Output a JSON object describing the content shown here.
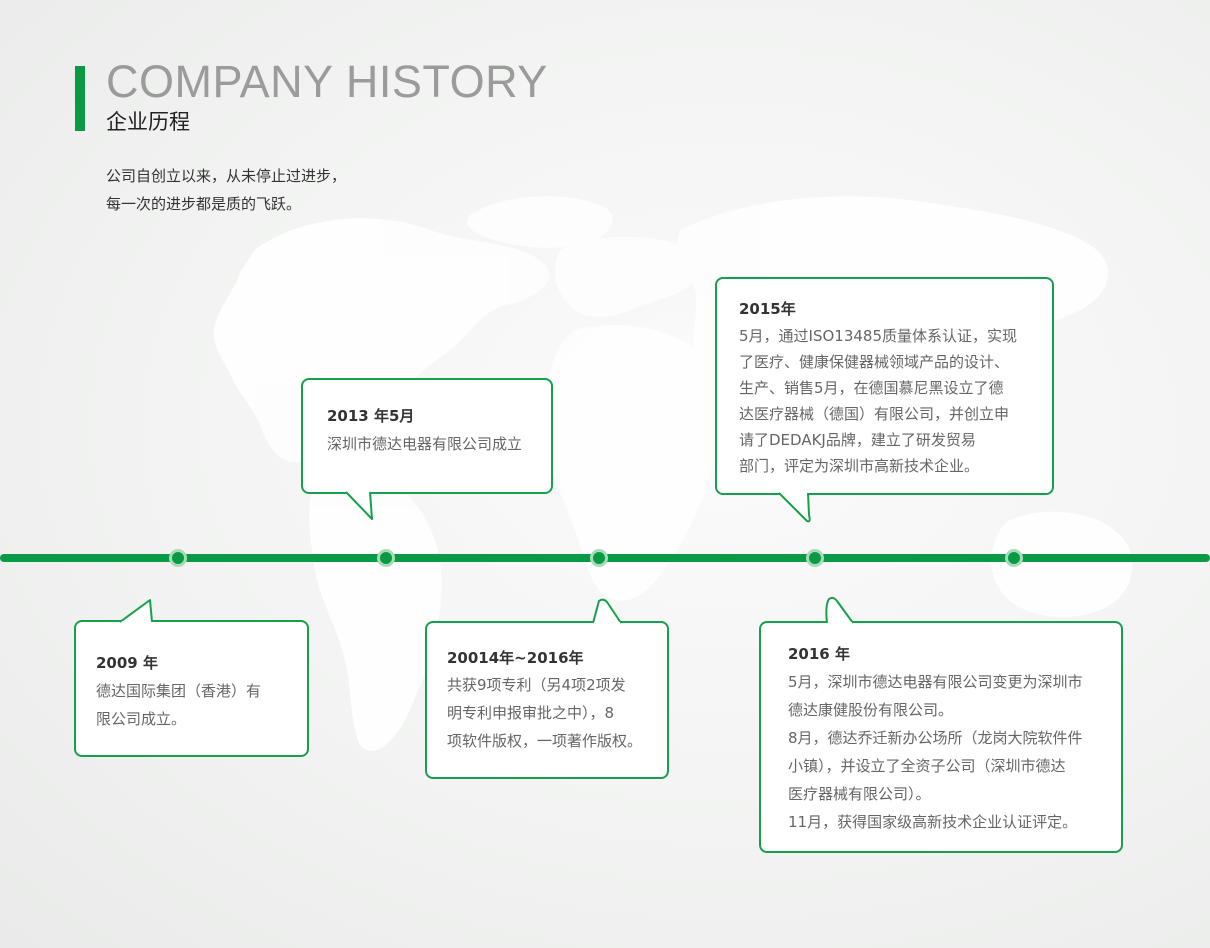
{
  "header": {
    "title_en": "COMPANY HISTORY",
    "title_cn": "企业历程",
    "intro_lines": [
      "公司自创立以来，从未停止过进步，",
      "每一次的进步都是质的飞跃。"
    ]
  },
  "colors": {
    "accent": "#0a9a45",
    "node_ring": "#a9dbb9",
    "card_border": "#17a04c"
  },
  "timeline": {
    "events": [
      {
        "year": "2009 年",
        "lines": [
          "德达国际集团（香港）有",
          "限公司成立。"
        ]
      },
      {
        "year": "2013 年5月",
        "lines": [
          "深圳市德达电器有限公司成立"
        ]
      },
      {
        "year": "20014年~2016年",
        "lines": [
          "共获9项专利（另4项2项发",
          "明专利申报审批之中），8",
          "项软件版权，一项著作版权。"
        ]
      },
      {
        "year": "2015年",
        "lines": [
          "5月，通过ISO13485质量体系认证，实现",
          "了医疗、健康保健器械领域产品的设计、",
          "生产、销售5月，在德国慕尼黑设立了德",
          "达医疗器械（德国）有限公司，并创立申",
          "请了DEDAKJ品牌，建立了研发贸易",
          "部门，评定为深圳市高新技术企业。"
        ]
      },
      {
        "year": "2016 年",
        "lines": [
          "5月，深圳市德达电器有限公司变更为深圳市",
          "德达康健股份有限公司。",
          "8月，德达乔迁新办公场所（龙岗大院软件件",
          "小镇），并设立了全资子公司（深圳市德达",
          "医疗器械有限公司）。",
          "11月，获得国家级高新技术企业认证评定。"
        ]
      }
    ]
  }
}
